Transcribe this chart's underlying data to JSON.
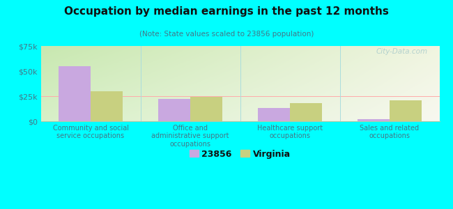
{
  "title": "Occupation by median earnings in the past 12 months",
  "subtitle": "(Note: State values scaled to 23856 population)",
  "categories": [
    "Community and social\nservice occupations",
    "Office and\nadministrative support\noccupations",
    "Healthcare support\noccupations",
    "Sales and related\noccupations"
  ],
  "values_23856": [
    55000,
    22000,
    13000,
    2000
  ],
  "values_virginia": [
    30000,
    24000,
    18000,
    21000
  ],
  "color_23856": "#c9a8e0",
  "color_virginia": "#c8d080",
  "ylim": [
    0,
    75000
  ],
  "yticks": [
    0,
    25000,
    50000,
    75000
  ],
  "ytick_labels": [
    "$0",
    "$25k",
    "$50k",
    "$75k"
  ],
  "background_color": "#00ffff",
  "legend_label_23856": "23856",
  "legend_label_virginia": "Virginia",
  "bar_width": 0.32,
  "watermark": "City-Data.com"
}
